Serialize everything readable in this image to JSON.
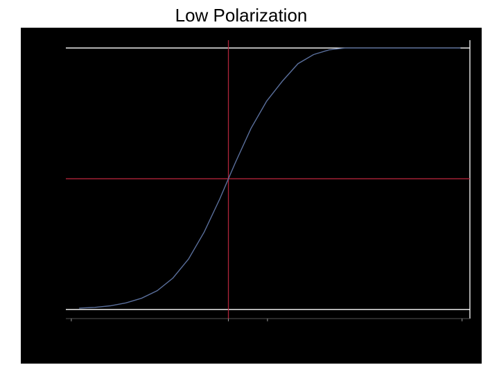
{
  "chart_data": {
    "type": "line",
    "title": "Low Polarization",
    "x": [
      2,
      6,
      10,
      14,
      18,
      22,
      26,
      30,
      34,
      38,
      40.2,
      42,
      46,
      50,
      54,
      58,
      62,
      66,
      70,
      75,
      80,
      90,
      99.6
    ],
    "series": [
      {
        "color": "#5a6f9c",
        "values": [
          0.005,
          0.008,
          0.014,
          0.025,
          0.043,
          0.072,
          0.12,
          0.193,
          0.296,
          0.423,
          0.5,
          0.562,
          0.693,
          0.797,
          0.873,
          0.94,
          0.975,
          0.993,
          1,
          1,
          1,
          1,
          1
        ]
      }
    ],
    "xlim": [
      -1.4,
      102
    ],
    "ylim": [
      -0.035,
      1.03
    ],
    "xticks": [
      0,
      40.2,
      50.2,
      100
    ],
    "reference_lines": [
      {
        "axis": "y",
        "value": 1,
        "color": "#ffffff"
      },
      {
        "axis": "y",
        "value": 0,
        "color": "#ffffff"
      },
      {
        "axis": "y",
        "value": 0.5,
        "color": "#b0243a"
      },
      {
        "axis": "x",
        "value": 40.2,
        "color": "#b0243a"
      }
    ]
  }
}
